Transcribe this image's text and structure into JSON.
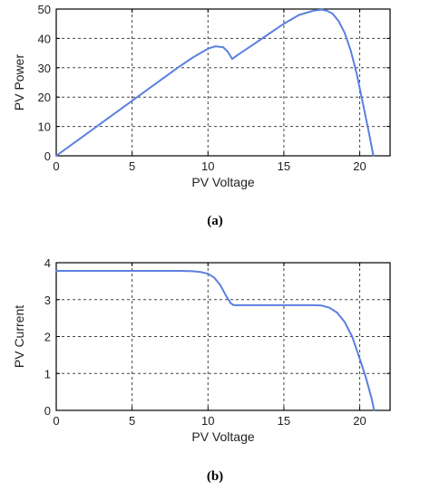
{
  "chart_data": [
    {
      "type": "line",
      "caption": "(a)",
      "xlabel": "PV Voltage",
      "ylabel": "PV Power",
      "xlim": [
        0,
        22
      ],
      "ylim": [
        0,
        50
      ],
      "xticks": [
        0,
        5,
        10,
        15,
        20
      ],
      "yticks": [
        0,
        10,
        20,
        30,
        40,
        50
      ],
      "xtick_labels": [
        "0",
        "5",
        "10",
        "15",
        "20"
      ],
      "ytick_labels": [
        "0",
        "10",
        "20",
        "30",
        "40",
        "50"
      ],
      "grid": true,
      "grid_style": "dashed",
      "line_color": "#5b7fe0",
      "series": [
        {
          "x": [
            0,
            2,
            4,
            6,
            8,
            9,
            10,
            10.5,
            11,
            11.3,
            11.6,
            12,
            13,
            14,
            15,
            16,
            17,
            17.5,
            17.8,
            18.2,
            18.6,
            19,
            19.4,
            19.8,
            20.2,
            20.6,
            20.9
          ],
          "y": [
            0,
            7.5,
            15,
            22.5,
            30,
            33.5,
            36.5,
            37.3,
            37,
            35.5,
            33,
            34.5,
            38,
            41.5,
            45,
            48,
            49.5,
            49.8,
            49.5,
            48.5,
            46,
            42,
            36,
            28,
            18,
            8,
            0
          ]
        }
      ]
    },
    {
      "type": "line",
      "caption": "(b)",
      "xlabel": "PV Voltage",
      "ylabel": "PV Current",
      "xlim": [
        0,
        22
      ],
      "ylim": [
        0,
        4
      ],
      "xticks": [
        0,
        5,
        10,
        15,
        20
      ],
      "yticks": [
        0,
        1,
        2,
        3,
        4
      ],
      "xtick_labels": [
        "0",
        "5",
        "10",
        "15",
        "20"
      ],
      "ytick_labels": [
        "0",
        "1",
        "2",
        "3",
        "4"
      ],
      "grid": true,
      "grid_style": "dashed",
      "line_color": "#5b7fe0",
      "series": [
        {
          "x": [
            0,
            2,
            4,
            6,
            8,
            9,
            9.5,
            10,
            10.4,
            10.8,
            11.2,
            11.5,
            11.7,
            12,
            13,
            14,
            15,
            16,
            17,
            17.5,
            18,
            18.5,
            19,
            19.5,
            20,
            20.4,
            20.8,
            20.95
          ],
          "y": [
            3.78,
            3.78,
            3.78,
            3.78,
            3.78,
            3.77,
            3.75,
            3.7,
            3.6,
            3.4,
            3.1,
            2.9,
            2.85,
            2.85,
            2.85,
            2.85,
            2.85,
            2.85,
            2.85,
            2.84,
            2.78,
            2.65,
            2.4,
            2.0,
            1.4,
            0.9,
            0.3,
            0
          ]
        }
      ]
    }
  ]
}
